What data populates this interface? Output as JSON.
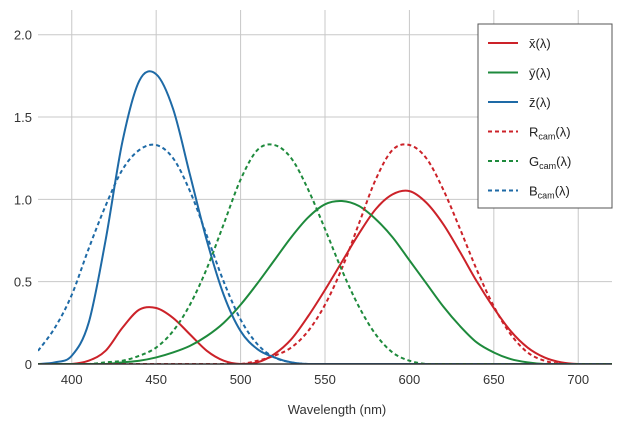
{
  "chart_data": {
    "type": "line",
    "title": "",
    "xlabel": "Wavelength (nm)",
    "ylabel": "",
    "xlim": [
      380,
      720
    ],
    "ylim": [
      0,
      2.15
    ],
    "x_ticks": [
      400,
      450,
      500,
      550,
      600,
      650,
      700
    ],
    "y_ticks": [
      0,
      0.5,
      1.0,
      1.5,
      2.0
    ],
    "x_tick_labels": [
      "400",
      "450",
      "500",
      "550",
      "600",
      "650",
      "700"
    ],
    "y_tick_labels": [
      "0",
      "0.5",
      "1.0",
      "1.5",
      "2.0"
    ],
    "grid": true,
    "legend_position": "top-right",
    "x": [
      380,
      390,
      400,
      410,
      420,
      430,
      440,
      450,
      460,
      470,
      480,
      490,
      500,
      510,
      520,
      530,
      540,
      550,
      560,
      570,
      580,
      590,
      600,
      610,
      620,
      630,
      640,
      650,
      660,
      670,
      680,
      690,
      700,
      710,
      720
    ],
    "series": [
      {
        "name": "x̄(λ)",
        "legend_main": "x̄(λ)",
        "legend_sub": "",
        "legend_suffix": "",
        "color": "#cc2229",
        "dash": "solid",
        "values": [
          0.0,
          0.0,
          0.0,
          0.02,
          0.08,
          0.22,
          0.33,
          0.34,
          0.28,
          0.18,
          0.08,
          0.02,
          0.0,
          0.01,
          0.06,
          0.15,
          0.29,
          0.45,
          0.62,
          0.79,
          0.94,
          1.03,
          1.05,
          0.98,
          0.85,
          0.68,
          0.5,
          0.34,
          0.2,
          0.1,
          0.04,
          0.01,
          0.0,
          0.0,
          0.0
        ]
      },
      {
        "name": "ȳ(λ)",
        "legend_main": "ȳ(λ)",
        "legend_sub": "",
        "legend_suffix": "",
        "color": "#1e8a3c",
        "dash": "solid",
        "values": [
          0.0,
          0.0,
          0.0,
          0.0,
          0.0,
          0.01,
          0.02,
          0.04,
          0.07,
          0.11,
          0.17,
          0.25,
          0.36,
          0.49,
          0.63,
          0.77,
          0.89,
          0.97,
          0.99,
          0.96,
          0.88,
          0.77,
          0.63,
          0.49,
          0.35,
          0.23,
          0.13,
          0.07,
          0.03,
          0.01,
          0.0,
          0.0,
          0.0,
          0.0,
          0.0
        ]
      },
      {
        "name": "z̄(λ)",
        "legend_main": "z̄(λ)",
        "legend_sub": "",
        "legend_suffix": "",
        "color": "#1e6aa6",
        "dash": "solid",
        "values": [
          0.0,
          0.01,
          0.05,
          0.25,
          0.75,
          1.35,
          1.72,
          1.76,
          1.55,
          1.15,
          0.75,
          0.42,
          0.2,
          0.09,
          0.04,
          0.01,
          0.0,
          0.0,
          0.0,
          0.0,
          0.0,
          0.0,
          0.0,
          0.0,
          0.0,
          0.0,
          0.0,
          0.0,
          0.0,
          0.0,
          0.0,
          0.0,
          0.0,
          0.0,
          0.0
        ]
      },
      {
        "name": "Rcam(λ)",
        "legend_main": "R",
        "legend_sub": "cam",
        "legend_suffix": "(λ)",
        "color": "#cc2229",
        "dash": "dotted",
        "values": [
          0.0,
          0.0,
          0.0,
          0.0,
          0.0,
          0.0,
          0.0,
          0.0,
          0.0,
          0.0,
          0.0,
          0.0,
          0.0,
          0.02,
          0.05,
          0.1,
          0.2,
          0.36,
          0.58,
          0.85,
          1.12,
          1.3,
          1.33,
          1.25,
          1.06,
          0.82,
          0.57,
          0.35,
          0.18,
          0.07,
          0.02,
          0.0,
          0.0,
          0.0,
          0.0
        ]
      },
      {
        "name": "Gcam(λ)",
        "legend_main": "G",
        "legend_sub": "cam",
        "legend_suffix": "(λ)",
        "color": "#1e8a3c",
        "dash": "dotted",
        "values": [
          0.0,
          0.0,
          0.0,
          0.0,
          0.01,
          0.02,
          0.05,
          0.1,
          0.2,
          0.36,
          0.58,
          0.85,
          1.12,
          1.3,
          1.33,
          1.25,
          1.06,
          0.82,
          0.57,
          0.35,
          0.18,
          0.07,
          0.02,
          0.0,
          0.0,
          0.0,
          0.0,
          0.0,
          0.0,
          0.0,
          0.0,
          0.0,
          0.0,
          0.0,
          0.0
        ]
      },
      {
        "name": "Bcam(λ)",
        "legend_main": "B",
        "legend_sub": "cam",
        "legend_suffix": "(λ)",
        "color": "#1e6aa6",
        "dash": "dotted",
        "values": [
          0.08,
          0.22,
          0.42,
          0.7,
          0.96,
          1.18,
          1.3,
          1.33,
          1.25,
          1.05,
          0.78,
          0.5,
          0.27,
          0.12,
          0.04,
          0.01,
          0.0,
          0.0,
          0.0,
          0.0,
          0.0,
          0.0,
          0.0,
          0.0,
          0.0,
          0.0,
          0.0,
          0.0,
          0.0,
          0.0,
          0.0,
          0.0,
          0.0,
          0.0,
          0.0
        ]
      }
    ]
  },
  "colors": {
    "grid": "#c8c8c8",
    "axis": "#333333",
    "frame": "#555555"
  }
}
